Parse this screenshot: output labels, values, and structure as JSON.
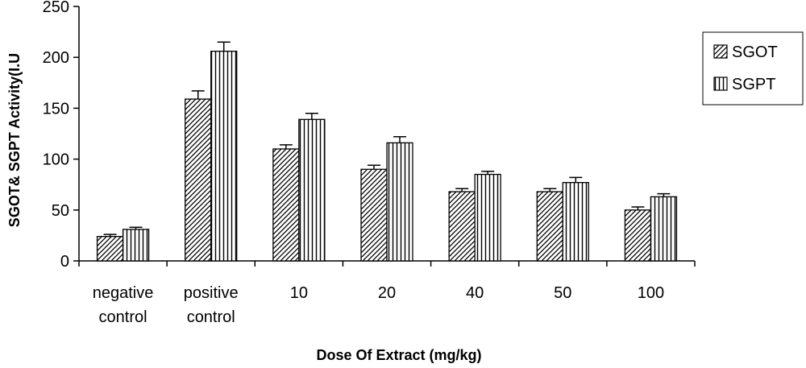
{
  "chart_data": {
    "type": "bar",
    "title": "",
    "xlabel": "Dose Of Extract (mg/kg)",
    "ylabel": "SGOT& SGPT Activity(I.U",
    "ylim": [
      0,
      250
    ],
    "yticks": [
      "0",
      "50",
      "100",
      "150",
      "200",
      "250"
    ],
    "categories": [
      [
        "negative",
        "control"
      ],
      [
        "positive",
        "control"
      ],
      [
        "10"
      ],
      [
        "20"
      ],
      [
        "40"
      ],
      [
        "50"
      ],
      [
        "100"
      ]
    ],
    "series": [
      {
        "name": "SGOT",
        "pattern": "diagonal",
        "values": [
          24,
          159,
          110,
          90,
          68,
          68,
          50
        ],
        "errors": [
          2,
          8,
          4,
          4,
          3,
          3,
          3
        ]
      },
      {
        "name": "SGPT",
        "pattern": "vertical",
        "values": [
          31,
          206,
          139,
          116,
          85,
          77,
          63
        ],
        "errors": [
          2,
          9,
          6,
          6,
          3,
          5,
          3
        ]
      }
    ],
    "grid": false,
    "legend_position": "right"
  }
}
